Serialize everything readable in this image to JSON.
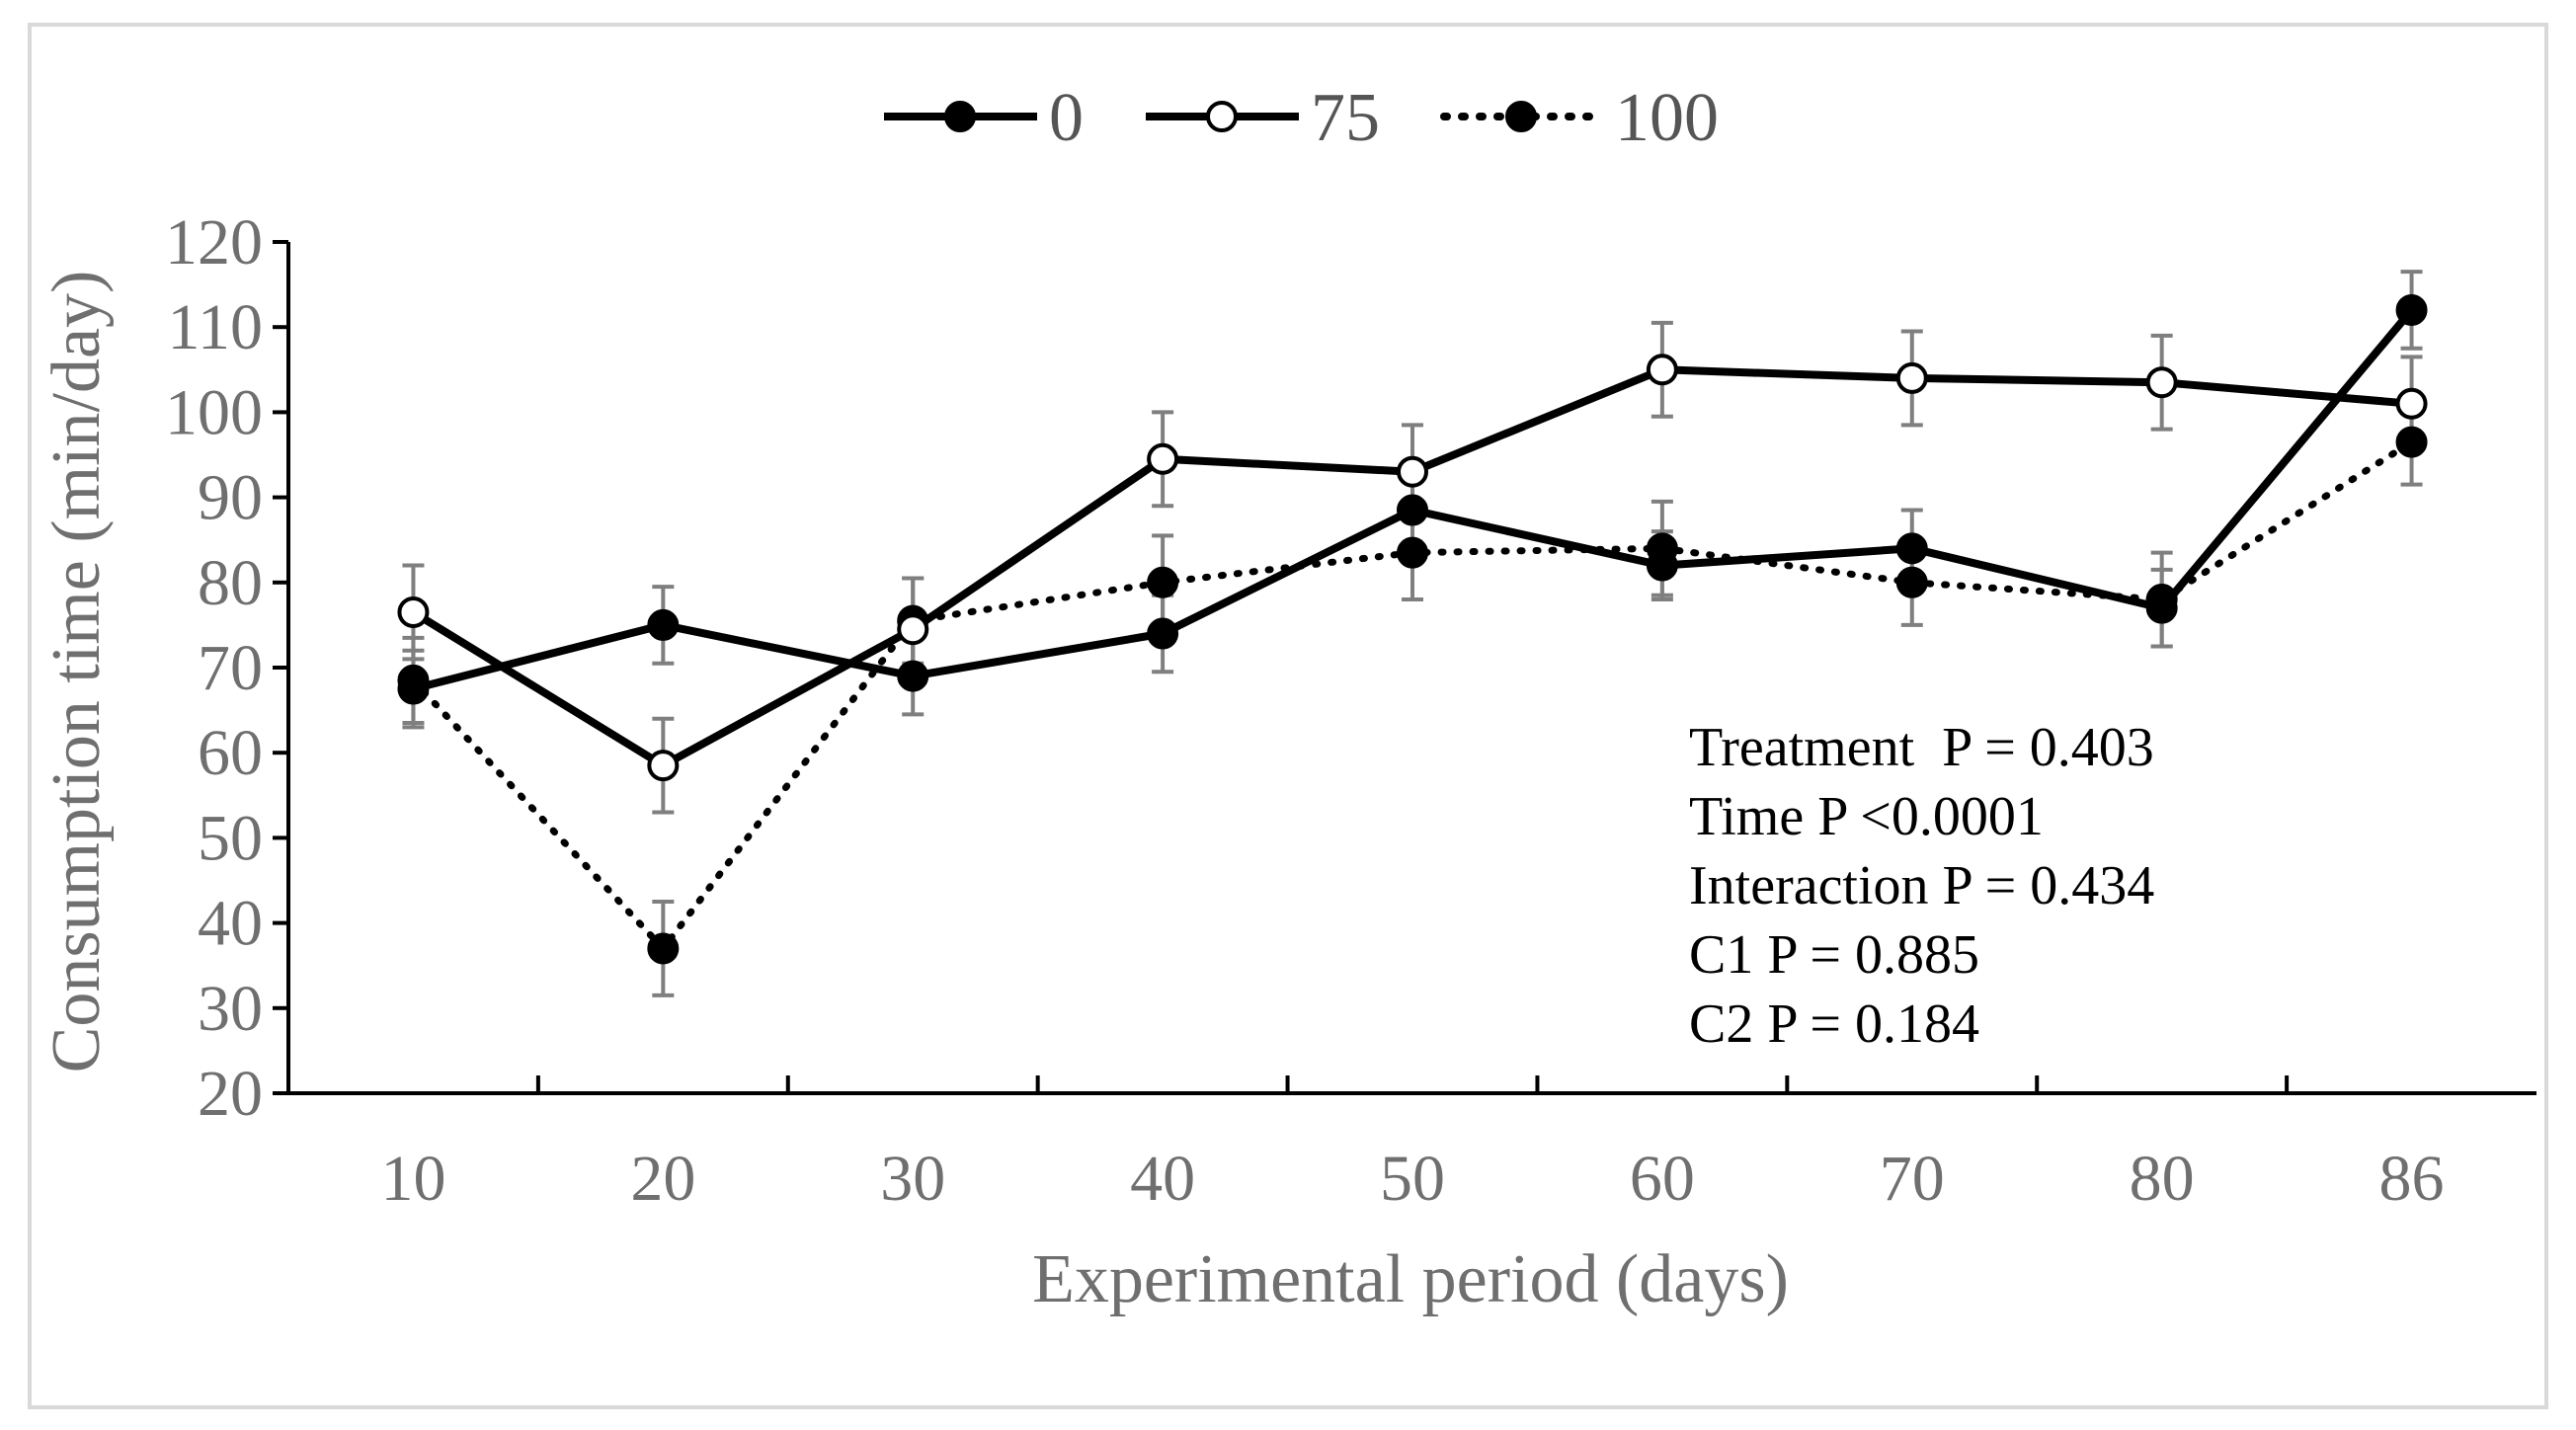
{
  "chart_data": {
    "type": "line",
    "xlabel": "Experimental period (days)",
    "ylabel": "Consumption time (min/day)",
    "categories": [
      "10",
      "20",
      "30",
      "40",
      "50",
      "60",
      "70",
      "80",
      "86"
    ],
    "ylim": [
      20,
      120
    ],
    "yticks": [
      "20",
      "30",
      "40",
      "50",
      "60",
      "70",
      "80",
      "90",
      "100",
      "110",
      "120"
    ],
    "legend_position": "top-center",
    "series": [
      {
        "name": "0",
        "line_style": "solid",
        "marker": "filled-circle",
        "values": [
          67.5,
          75,
          69,
          74,
          88.5,
          82,
          84,
          77,
          112
        ],
        "errors": [
          4.5,
          4.5,
          4.5,
          4.5,
          5.0,
          4.0,
          4.5,
          4.5,
          4.5
        ]
      },
      {
        "name": "75",
        "line_style": "solid",
        "marker": "open-circle",
        "values": [
          76.5,
          58.5,
          74.5,
          94.5,
          93,
          105,
          104,
          103.5,
          101
        ],
        "errors": [
          5.5,
          5.5,
          6.0,
          5.5,
          5.5,
          5.5,
          5.5,
          5.5,
          5.5
        ]
      },
      {
        "name": "100",
        "line_style": "dotted",
        "marker": "filled-circle",
        "values": [
          68.5,
          37,
          75.5,
          80,
          83.5,
          84,
          80,
          78,
          96.5
        ],
        "errors": [
          5.0,
          5.5,
          5.0,
          5.5,
          5.5,
          5.5,
          5.0,
          5.5,
          5.0
        ]
      }
    ],
    "annotations": [
      "Treatment  P = 0.403",
      "Time P <0.0001",
      "Interaction P = 0.434",
      "C1 P = 0.885",
      "C2 P = 0.184"
    ],
    "colors": {
      "line": "#000000",
      "error_bar": "#7f7f7f",
      "text": "#6f6f6f",
      "frame": "#d9d9d9"
    }
  }
}
